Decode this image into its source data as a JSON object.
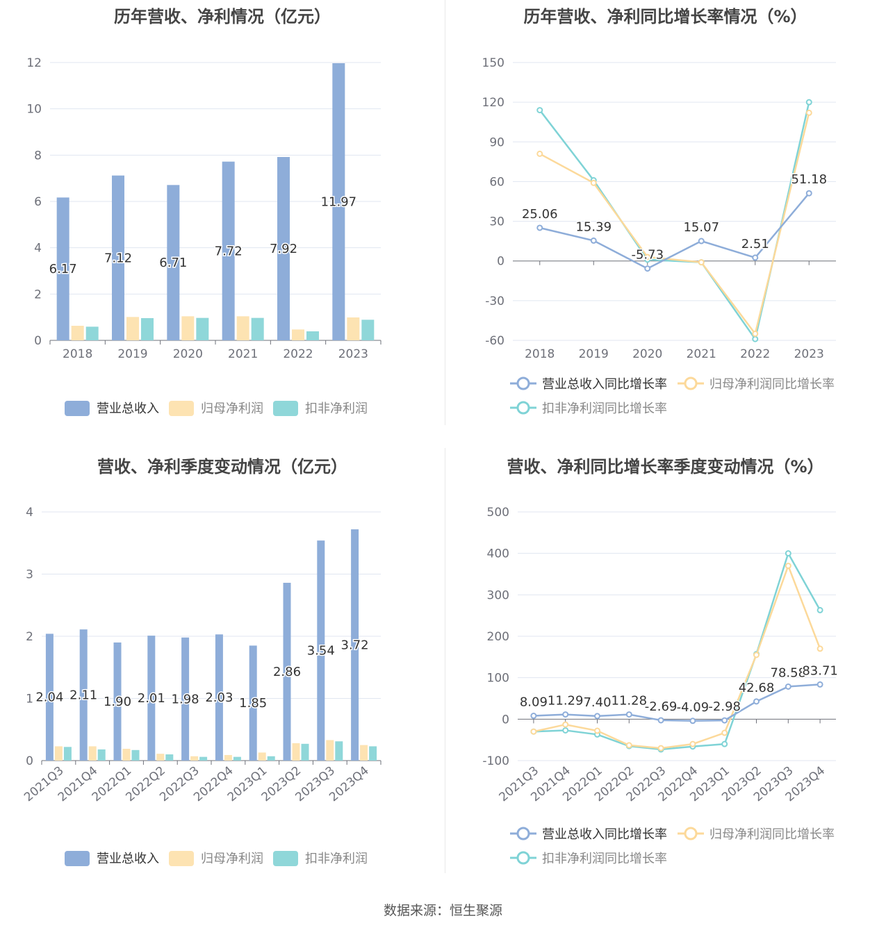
{
  "colors": {
    "revenue": "#8eadd9",
    "net_profit": "#fde3b2",
    "deducted_profit": "#8fd7d9",
    "line_revenue": "#8eadd9",
    "line_net": "#fcd99a",
    "line_deducted": "#7fd3d6"
  },
  "footer": "数据来源：恒生聚源",
  "chart_data": [
    {
      "type": "bar",
      "title": "历年营收、净利情况（亿元）",
      "categories": [
        "2018",
        "2019",
        "2020",
        "2021",
        "2022",
        "2023"
      ],
      "ylim": [
        0,
        12
      ],
      "yticks": [
        0,
        2,
        4,
        6,
        8,
        10,
        12
      ],
      "series": [
        {
          "name": "营业总收入",
          "values": [
            6.17,
            7.12,
            6.71,
            7.72,
            7.92,
            11.97
          ],
          "labels": [
            "6.17",
            "7.12",
            "6.71",
            "7.72",
            "7.92",
            "11.97"
          ]
        },
        {
          "name": "归母净利润",
          "values": [
            0.63,
            1.01,
            1.04,
            1.04,
            0.47,
            0.99
          ]
        },
        {
          "name": "扣非净利润",
          "values": [
            0.59,
            0.96,
            0.97,
            0.97,
            0.39,
            0.89
          ]
        }
      ]
    },
    {
      "type": "line",
      "title": "历年营收、净利同比增长率情况（%）",
      "categories": [
        "2018",
        "2019",
        "2020",
        "2021",
        "2022",
        "2023"
      ],
      "ylim": [
        -60,
        150
      ],
      "yticks": [
        -60,
        -30,
        0,
        30,
        60,
        90,
        120,
        150
      ],
      "series": [
        {
          "name": "营业总收入同比增长率",
          "values": [
            25.06,
            15.39,
            -5.73,
            15.07,
            2.51,
            51.18
          ],
          "labels": [
            "25.06",
            "15.39",
            "-5.73",
            "15.07",
            "2.51",
            "51.18"
          ]
        },
        {
          "name": "归母净利润同比增长率",
          "values": [
            81,
            59,
            3,
            -1,
            -55,
            112
          ]
        },
        {
          "name": "扣非净利润同比增长率",
          "values": [
            114,
            61,
            1,
            -1,
            -59,
            120
          ]
        }
      ]
    },
    {
      "type": "bar",
      "title": "营收、净利季度变动情况（亿元）",
      "categories": [
        "2021Q3",
        "2021Q4",
        "2022Q1",
        "2022Q2",
        "2022Q3",
        "2022Q4",
        "2023Q1",
        "2023Q2",
        "2023Q3",
        "2023Q4"
      ],
      "ylim": [
        0,
        4
      ],
      "yticks": [
        0,
        1,
        2,
        3,
        4
      ],
      "series": [
        {
          "name": "营业总收入",
          "values": [
            2.04,
            2.11,
            1.9,
            2.01,
            1.98,
            2.03,
            1.85,
            2.86,
            3.54,
            3.72
          ],
          "labels": [
            "2.04",
            "2.11",
            "1.90",
            "2.01",
            "1.98",
            "2.03",
            "1.85",
            "2.86",
            "3.54",
            "3.72"
          ]
        },
        {
          "name": "归母净利润",
          "values": [
            0.23,
            0.23,
            0.19,
            0.11,
            0.07,
            0.09,
            0.13,
            0.28,
            0.33,
            0.25
          ]
        },
        {
          "name": "扣非净利润",
          "values": [
            0.22,
            0.18,
            0.17,
            0.1,
            0.06,
            0.06,
            0.07,
            0.27,
            0.31,
            0.23
          ]
        }
      ]
    },
    {
      "type": "line",
      "title": "营收、净利同比增长率季度变动情况（%）",
      "categories": [
        "2021Q3",
        "2021Q4",
        "2022Q1",
        "2022Q2",
        "2022Q3",
        "2022Q4",
        "2023Q1",
        "2023Q2",
        "2023Q3",
        "2023Q4"
      ],
      "ylim": [
        -100,
        500
      ],
      "yticks": [
        -100,
        0,
        100,
        200,
        300,
        400,
        500
      ],
      "series": [
        {
          "name": "营业总收入同比增长率",
          "values": [
            8.09,
            11.29,
            7.4,
            11.28,
            -2.69,
            -4.09,
            -2.98,
            42.68,
            78.58,
            83.71
          ],
          "labels": [
            "8.09",
            "11.29",
            "7.40",
            "11.28",
            "-2.69",
            "-4.09",
            "-2.98",
            "42.68",
            "78.58",
            "83.71"
          ]
        },
        {
          "name": "归母净利润同比增长率",
          "values": [
            -30,
            -13,
            -28,
            -63,
            -70,
            -60,
            -33,
            155,
            370,
            170
          ]
        },
        {
          "name": "扣非净利润同比增长率",
          "values": [
            -30,
            -27,
            -37,
            -65,
            -73,
            -66,
            -60,
            157,
            400,
            263
          ]
        }
      ]
    }
  ]
}
